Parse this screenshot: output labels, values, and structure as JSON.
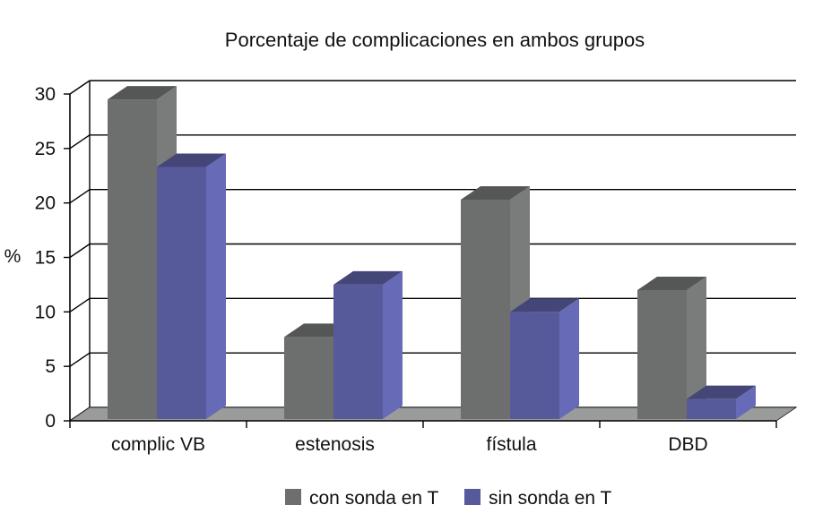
{
  "chart_data": {
    "type": "bar",
    "title": "Porcentaje de complicaciones en ambos grupos",
    "ylabel": "%",
    "xlabel": "",
    "ylim": [
      0,
      30
    ],
    "yticks": [
      0,
      5,
      10,
      15,
      20,
      25,
      30
    ],
    "grid": true,
    "three_d": true,
    "legend_position": "bottom",
    "categories": [
      "complic VB",
      "estenosis",
      "fístula",
      "DBD"
    ],
    "series": [
      {
        "name": "con sonda en T",
        "color": "#6d6f6e",
        "values": [
          29.5,
          7.7,
          20.3,
          12.0
        ]
      },
      {
        "name": "sin sonda en T",
        "color": "#575a9a",
        "values": [
          23.3,
          12.5,
          10.0,
          2.0
        ]
      }
    ]
  }
}
